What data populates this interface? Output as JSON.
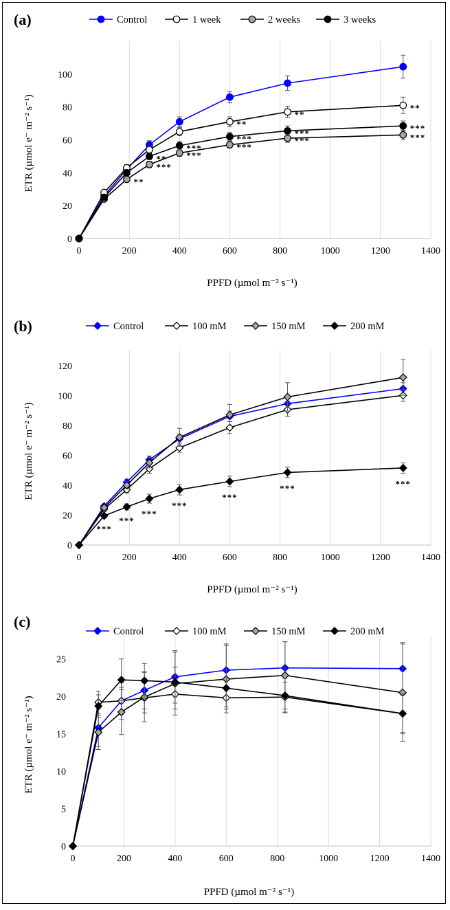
{
  "chart_data": [
    {
      "panel": "(a)",
      "type": "line",
      "xlabel": "PPFD (µmol m⁻² s⁻¹)",
      "ylabel": "ETR (µmol e⁻ m⁻² s⁻¹)",
      "xlim": [
        0,
        1400
      ],
      "ylim": [
        0,
        120
      ],
      "xticks": [
        0,
        200,
        400,
        600,
        800,
        1000,
        1200,
        1400
      ],
      "yticks": [
        0,
        20,
        40,
        60,
        80,
        100
      ],
      "grid": "vertical",
      "legend_position": "top",
      "x": [
        0,
        100,
        190,
        280,
        400,
        600,
        830,
        1290
      ],
      "series": [
        {
          "name": "Control",
          "marker": "circle",
          "fill": "#0000ff",
          "line": "#0000ff",
          "values": [
            0,
            26,
            42,
            57,
            71,
            86,
            94.5,
            104.5
          ],
          "errors": [
            0,
            1.5,
            2,
            2.5,
            3,
            3.5,
            4.5,
            7
          ],
          "sig": [
            "",
            "",
            "",
            "",
            "",
            "",
            "",
            ""
          ]
        },
        {
          "name": "1 week",
          "marker": "circle",
          "fill": "#ffffff",
          "line": "#000000",
          "values": [
            0,
            28,
            43,
            54,
            65,
            71,
            77,
            81
          ],
          "errors": [
            0,
            1.5,
            2,
            2,
            2.5,
            3,
            3.5,
            5
          ],
          "sig": [
            "",
            "",
            "",
            "",
            "",
            "**",
            "**",
            "**"
          ]
        },
        {
          "name": "2 weeks",
          "marker": "circle",
          "fill": "#a6a6a6",
          "line": "#000000",
          "values": [
            0,
            24,
            36,
            45,
            52,
            57,
            61,
            63
          ],
          "errors": [
            0,
            1.5,
            1.5,
            2,
            2,
            2,
            2.5,
            3
          ],
          "sig": [
            "",
            "",
            "**",
            "***",
            "***",
            "***",
            "***",
            "***"
          ]
        },
        {
          "name": "3 weeks",
          "marker": "circle",
          "fill": "#000000",
          "line": "#000000",
          "values": [
            0,
            25,
            40,
            50,
            56.5,
            62,
            65.5,
            68.5
          ],
          "errors": [
            0,
            1.5,
            1.5,
            2,
            2.5,
            2.5,
            3,
            3
          ],
          "sig": [
            "",
            "",
            "",
            "**",
            "***",
            "***",
            "***",
            "***"
          ]
        }
      ]
    },
    {
      "panel": "(b)",
      "type": "line",
      "xlabel": "PPFD (µmol m⁻² s⁻¹)",
      "ylabel": "ETR (µmol e⁻ m⁻² s⁻¹)",
      "xlim": [
        0,
        1400
      ],
      "ylim": [
        0,
        130
      ],
      "xticks": [
        0,
        200,
        400,
        600,
        800,
        1000,
        1200,
        1400
      ],
      "yticks": [
        0,
        20,
        40,
        60,
        80,
        100,
        120
      ],
      "grid": "vertical",
      "legend_position": "top",
      "x": [
        0,
        100,
        190,
        280,
        400,
        600,
        830,
        1290
      ],
      "series": [
        {
          "name": "Control",
          "marker": "diamond",
          "fill": "#0000ff",
          "line": "#0000ff",
          "values": [
            0,
            26,
            42,
            57,
            71,
            86,
            94.5,
            104.5
          ],
          "errors": [
            0,
            1.5,
            2,
            2.5,
            3,
            3.5,
            4.5,
            4
          ],
          "sig": [
            "",
            "",
            "",
            "",
            "",
            "",
            "",
            ""
          ]
        },
        {
          "name": "100 mM",
          "marker": "diamond",
          "fill": "#ffffff",
          "line": "#000000",
          "values": [
            0,
            24,
            37,
            51,
            65,
            78.5,
            90.5,
            100
          ],
          "errors": [
            0,
            1.5,
            2,
            3,
            3,
            4,
            4.5,
            4
          ],
          "sig": [
            "",
            "",
            "",
            "",
            "",
            "",
            "",
            ""
          ]
        },
        {
          "name": "150 mM",
          "marker": "diamond",
          "fill": "#a6a6a6",
          "line": "#000000",
          "values": [
            0,
            25,
            40,
            55,
            72,
            87,
            99,
            112
          ],
          "errors": [
            0,
            1.5,
            2.5,
            3.5,
            6,
            7,
            9.5,
            12
          ],
          "sig": [
            "",
            "",
            "",
            "",
            "",
            "",
            "",
            ""
          ]
        },
        {
          "name": "200 mM",
          "marker": "diamond",
          "fill": "#000000",
          "line": "#000000",
          "values": [
            0,
            19.5,
            25.5,
            31,
            37,
            42.5,
            48.5,
            51.5
          ],
          "errors": [
            0,
            1.5,
            2,
            3,
            3.5,
            3.5,
            3.5,
            3.5
          ],
          "sig": [
            "",
            "***",
            "***",
            "***",
            "***",
            "***",
            "***",
            "***"
          ]
        }
      ]
    },
    {
      "panel": "(c)",
      "type": "line",
      "xlabel": "PPFD (µmol m⁻² s⁻¹)",
      "ylabel": "ETR (µmol e⁻ m⁻² s⁻¹)",
      "xlim": [
        0,
        1400
      ],
      "ylim": [
        0,
        28
      ],
      "xticks": [
        0,
        200,
        400,
        600,
        800,
        1000,
        1200,
        1400
      ],
      "yticks": [
        0,
        5,
        10,
        15,
        20,
        25
      ],
      "grid": "vertical",
      "legend_position": "top",
      "x": [
        0,
        100,
        190,
        280,
        400,
        600,
        830,
        1290
      ],
      "series": [
        {
          "name": "Control",
          "marker": "diamond",
          "fill": "#0000ff",
          "line": "#0000ff",
          "values": [
            0,
            15.8,
            19.4,
            20.8,
            22.6,
            23.5,
            23.8,
            23.7
          ],
          "errors": [
            0,
            2.5,
            2.5,
            2.5,
            3.5,
            3.5,
            3.5,
            3.5
          ],
          "sig": [
            "",
            "",
            "",
            "",
            "",
            "",
            "",
            ""
          ]
        },
        {
          "name": "100 mM",
          "marker": "diamond",
          "fill": "#ffffff",
          "line": "#000000",
          "values": [
            0,
            19.2,
            19.4,
            19.8,
            20.3,
            19.8,
            19.9,
            17.7
          ],
          "errors": [
            0,
            1.5,
            1.8,
            2,
            2,
            1.5,
            2,
            2.5
          ],
          "sig": [
            "",
            "",
            "",
            "",
            "",
            "",
            "",
            ""
          ]
        },
        {
          "name": "150 mM",
          "marker": "diamond",
          "fill": "#a6a6a6",
          "line": "#000000",
          "values": [
            0,
            15.2,
            17.9,
            19.9,
            21.7,
            22.3,
            22.8,
            20.5
          ],
          "errors": [
            0,
            2.3,
            3,
            3.3,
            4.2,
            4.5,
            4.5,
            6.5
          ],
          "sig": [
            "",
            "",
            "",
            "",
            "",
            "",
            "",
            ""
          ]
        },
        {
          "name": "200 mM",
          "marker": "diamond",
          "fill": "#000000",
          "line": "#000000",
          "values": [
            0,
            18.7,
            22.2,
            22.1,
            21.9,
            21.1,
            20.1,
            17.7
          ],
          "errors": [
            0,
            1.5,
            2.8,
            2.3,
            2,
            2.5,
            2.3,
            2.7
          ],
          "sig": [
            "",
            "",
            "",
            "",
            "",
            "",
            "",
            ""
          ]
        }
      ]
    }
  ]
}
